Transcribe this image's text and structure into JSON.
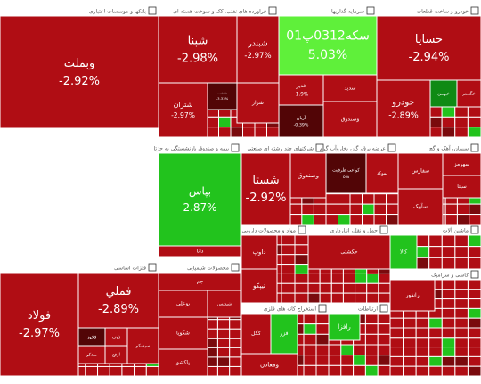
{
  "chart_data": {
    "type": "treemap",
    "colors": {
      "neg_strong": "#b00d14",
      "neg_mid": "#c21a1f",
      "neg_dark": "#7a0a0d",
      "neg_darker": "#520506",
      "pos_bright": "#22c31d",
      "pos_lime": "#5ff03a",
      "pos_dark": "#0f8a14",
      "header_bg": "#ffffff",
      "header_text": "#555555",
      "border": "#ffffff"
    },
    "sectors": [
      {
        "name": "بانکها و موسسات اعتباری",
        "symbols": [
          {
            "name": "وبملت",
            "change": "-2.92%"
          },
          {
            "name": "وگردش",
            "change": "2.97%"
          },
          {
            "name": "ویسار",
            "change": "-1.65%"
          },
          {
            "name": "ونوين",
            "change": "-2.99%"
          },
          {
            "name": "وخاور",
            "change": ""
          },
          {
            "name": "وبو",
            "change": ""
          }
        ]
      },
      {
        "name": "فراورده های نفتی، کک و سوخت هسته ای",
        "symbols": [
          {
            "name": "شپنا",
            "change": "-2.98%"
          },
          {
            "name": "شبندر",
            "change": "-2.97%"
          },
          {
            "name": "شتران",
            "change": "-2.97%"
          },
          {
            "name": "شنفت",
            "change": "-3.33%"
          },
          {
            "name": "شراز",
            "change": ""
          }
        ]
      },
      {
        "name": "سرمایه گذاریها",
        "symbols": [
          {
            "name": "سکه0312پ01",
            "change": "5.03%"
          },
          {
            "name": "غدیر",
            "change": "-1.9%"
          },
          {
            "name": "آریان",
            "change": "-0.39%"
          },
          {
            "name": "سدید",
            "change": ""
          },
          {
            "name": "وصندوق",
            "change": ""
          }
        ]
      },
      {
        "name": "خودرو و ساخت قطعات",
        "symbols": [
          {
            "name": "خسایا",
            "change": "-2.94%"
          },
          {
            "name": "خودرو",
            "change": "-2.89%"
          },
          {
            "name": "خبهمن",
            "change": ""
          },
          {
            "name": "خگستر",
            "change": ""
          }
        ]
      },
      {
        "name": "بیمه و صندوق بازنشستگی به جزتا",
        "symbols": [
          {
            "name": "بپاس",
            "change": "2.87%"
          },
          {
            "name": "دانا",
            "change": ""
          }
        ]
      },
      {
        "name": "شرکتهای چند رشته ای صنعتی",
        "symbols": [
          {
            "name": "شستا",
            "change": "-2.92%"
          },
          {
            "name": "وصندوق",
            "change": ""
          }
        ]
      },
      {
        "name": "عرضه برق، گاز، بخاروآب گرم",
        "symbols": [
          {
            "name": "کواعی ظرفیت",
            "change": "0%"
          },
          {
            "name": "بموکد",
            "change": ""
          }
        ]
      },
      {
        "name": "سیمان، آهک و گچ",
        "symbols": [
          {
            "name": "سفارس",
            "change": ""
          },
          {
            "name": "سهرمز",
            "change": ""
          },
          {
            "name": "سآبیک",
            "change": ""
          },
          {
            "name": "سیتا",
            "change": ""
          }
        ]
      },
      {
        "name": "فلزات اساسی",
        "symbols": [
          {
            "name": "فولاد",
            "change": "-2.97%"
          },
          {
            "name": "فملي",
            "change": "-2.89%"
          },
          {
            "name": "فخوز",
            "change": ""
          },
          {
            "name": "میدکو",
            "change": ""
          },
          {
            "name": "ذوب",
            "change": ""
          },
          {
            "name": "ارفع",
            "change": ""
          },
          {
            "name": "سیسکو",
            "change": ""
          }
        ]
      },
      {
        "name": "محصولات شیمیایی",
        "symbols": [
          {
            "name": "جم",
            "change": ""
          },
          {
            "name": "بوعلی",
            "change": ""
          },
          {
            "name": "شگویا",
            "change": ""
          },
          {
            "name": "پاکشو",
            "change": ""
          },
          {
            "name": "شپدیس",
            "change": ""
          }
        ]
      },
      {
        "name": "مواد و محصولات دارویی",
        "symbols": [
          {
            "name": "داوپ",
            "change": ""
          },
          {
            "name": "تیپکو",
            "change": ""
          }
        ]
      },
      {
        "name": "استخراج کانه های فلزی",
        "symbols": [
          {
            "name": "کگل",
            "change": ""
          },
          {
            "name": "فزر",
            "change": ""
          },
          {
            "name": "ومعادن",
            "change": ""
          }
        ]
      },
      {
        "name": "حمل و نقل، انبارداری",
        "symbols": [
          {
            "name": "حکشتی",
            "change": ""
          }
        ]
      },
      {
        "name": "ماشین آلات",
        "symbols": [
          {
            "name": "کالا",
            "change": ""
          }
        ]
      },
      {
        "name": "ارتباطات",
        "symbols": [
          {
            "name": "رافزا",
            "change": ""
          }
        ]
      },
      {
        "name": "کاشی و سرامیک",
        "symbols": [
          {
            "name": "رانفور",
            "change": ""
          }
        ]
      }
    ]
  }
}
